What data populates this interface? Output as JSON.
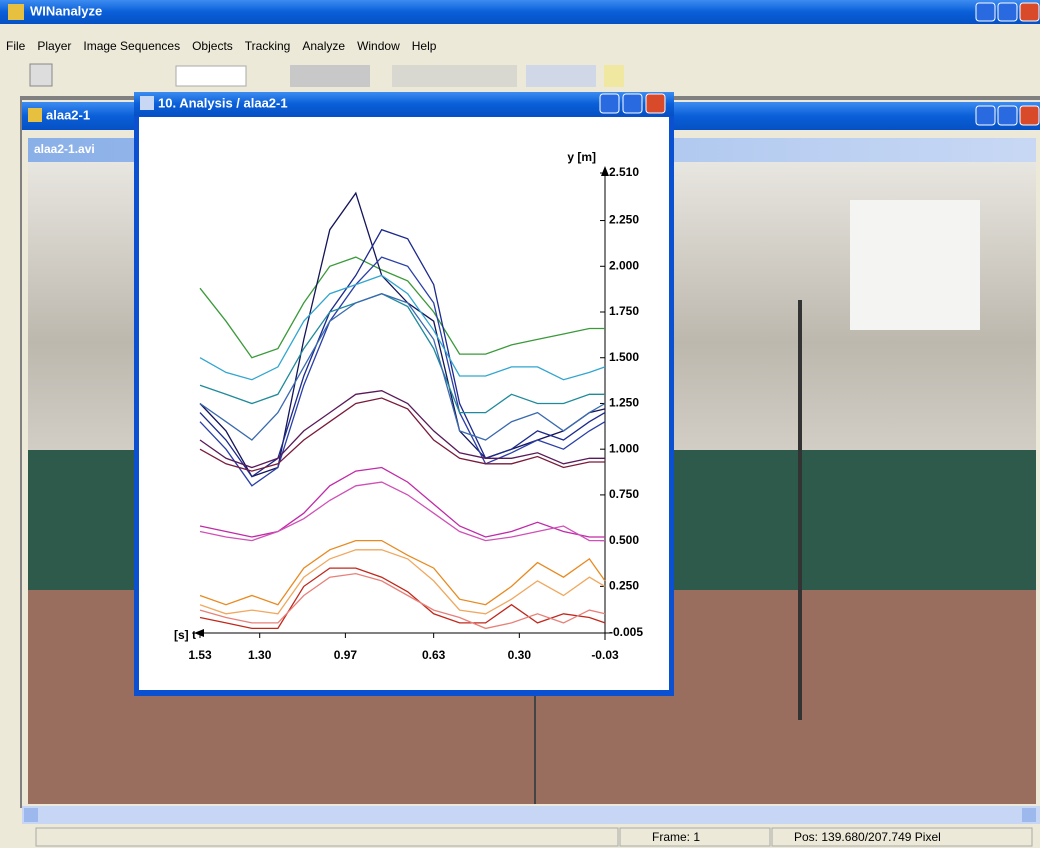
{
  "window": {
    "title": "WINanalyze",
    "menu": [
      "File",
      "Player",
      "Image Sequences",
      "Objects",
      "Tracking",
      "Analyze",
      "Window",
      "Help"
    ]
  },
  "document_window": {
    "title": "alaa2-1",
    "subtitle": "alaa2-1.avi"
  },
  "analysis_window": {
    "title": "10. Analysis / alaa2-1"
  },
  "chart_data": {
    "type": "line",
    "y_label": "y [m]",
    "x_label": "[s] t",
    "x": [
      1.53,
      1.43,
      1.33,
      1.23,
      1.13,
      1.03,
      0.93,
      0.83,
      0.73,
      0.63,
      0.53,
      0.43,
      0.33,
      0.23,
      0.13,
      0.03,
      -0.03
    ],
    "xlim": [
      1.53,
      -0.03
    ],
    "xticks": [
      1.53,
      {
        "value": 1.3,
        "label": "1.30"
      },
      0.97,
      0.63,
      {
        "value": 0.3,
        "label": "0.30"
      },
      -0.03
    ],
    "ylim": [
      -0.005,
      2.51
    ],
    "yticks": [
      {
        "value": 2.51,
        "label": "2.510"
      },
      {
        "value": 2.25,
        "label": "2.250"
      },
      {
        "value": 2,
        "label": "2.000"
      },
      {
        "value": 1.75,
        "label": "1.750"
      },
      {
        "value": 1.5,
        "label": "1.500"
      },
      {
        "value": 1.25,
        "label": "1.250"
      },
      {
        "value": 1,
        "label": "1.000"
      },
      {
        "value": 0.75,
        "label": "0.750"
      },
      {
        "value": 0.5,
        "label": "0.500"
      },
      {
        "value": 0.25,
        "label": "0.250"
      },
      -0.005
    ],
    "series": [
      {
        "color": "#3a9a3a",
        "values": [
          1.88,
          1.7,
          1.5,
          1.55,
          1.8,
          2.0,
          2.05,
          1.98,
          1.92,
          1.75,
          1.52,
          1.52,
          1.57,
          1.6,
          1.63,
          1.66,
          1.66
        ]
      },
      {
        "color": "#14145a",
        "values": [
          1.25,
          1.1,
          0.85,
          0.9,
          1.6,
          2.2,
          2.4,
          1.95,
          1.8,
          1.7,
          1.1,
          0.95,
          1.0,
          1.05,
          1.1,
          1.2,
          1.22
        ]
      },
      {
        "color": "#1c2a8c",
        "values": [
          1.2,
          1.05,
          0.85,
          0.95,
          1.4,
          1.75,
          1.95,
          2.2,
          2.15,
          1.9,
          1.25,
          0.95,
          1.0,
          1.1,
          1.05,
          1.15,
          1.2
        ]
      },
      {
        "color": "#2a3fa8",
        "values": [
          1.15,
          1.0,
          0.8,
          0.9,
          1.35,
          1.7,
          1.9,
          2.05,
          2.0,
          1.8,
          1.2,
          0.92,
          0.98,
          1.05,
          1.0,
          1.1,
          1.15
        ]
      },
      {
        "color": "#30a6d0",
        "values": [
          1.5,
          1.42,
          1.38,
          1.45,
          1.7,
          1.85,
          1.9,
          1.95,
          1.85,
          1.65,
          1.4,
          1.4,
          1.45,
          1.45,
          1.38,
          1.42,
          1.45
        ]
      },
      {
        "color": "#1f8a9a",
        "values": [
          1.35,
          1.3,
          1.25,
          1.3,
          1.55,
          1.75,
          1.8,
          1.85,
          1.78,
          1.55,
          1.2,
          1.2,
          1.3,
          1.25,
          1.25,
          1.3,
          1.3
        ]
      },
      {
        "color": "#3a6ab0",
        "values": [
          1.25,
          1.15,
          1.05,
          1.2,
          1.45,
          1.7,
          1.8,
          1.85,
          1.8,
          1.6,
          1.1,
          1.05,
          1.15,
          1.2,
          1.1,
          1.2,
          1.25
        ]
      },
      {
        "color": "#5a1a5a",
        "values": [
          1.05,
          0.95,
          0.9,
          0.95,
          1.1,
          1.2,
          1.3,
          1.32,
          1.25,
          1.1,
          0.98,
          0.95,
          0.95,
          0.98,
          0.92,
          0.95,
          0.95
        ]
      },
      {
        "color": "#7a1a3a",
        "values": [
          1.0,
          0.92,
          0.88,
          0.92,
          1.05,
          1.15,
          1.25,
          1.28,
          1.22,
          1.05,
          0.95,
          0.92,
          0.92,
          0.96,
          0.9,
          0.93,
          0.93
        ]
      },
      {
        "color": "#c02aa8",
        "values": [
          0.58,
          0.55,
          0.52,
          0.55,
          0.65,
          0.8,
          0.88,
          0.9,
          0.82,
          0.7,
          0.58,
          0.52,
          0.55,
          0.6,
          0.55,
          0.52,
          0.52
        ]
      },
      {
        "color": "#d050b8",
        "values": [
          0.55,
          0.52,
          0.5,
          0.55,
          0.62,
          0.72,
          0.8,
          0.82,
          0.75,
          0.65,
          0.55,
          0.5,
          0.52,
          0.55,
          0.58,
          0.5,
          0.5
        ]
      },
      {
        "color": "#e88a20",
        "values": [
          0.2,
          0.15,
          0.2,
          0.15,
          0.35,
          0.45,
          0.5,
          0.5,
          0.42,
          0.35,
          0.18,
          0.15,
          0.25,
          0.38,
          0.3,
          0.4,
          0.28
        ]
      },
      {
        "color": "#f0a860",
        "values": [
          0.15,
          0.1,
          0.12,
          0.1,
          0.3,
          0.4,
          0.45,
          0.45,
          0.4,
          0.28,
          0.12,
          0.1,
          0.18,
          0.28,
          0.2,
          0.3,
          0.25
        ]
      },
      {
        "color": "#c0281c",
        "values": [
          0.08,
          0.05,
          0.02,
          0.02,
          0.25,
          0.35,
          0.35,
          0.3,
          0.22,
          0.1,
          0.05,
          0.05,
          0.15,
          0.05,
          0.1,
          0.08,
          0.05
        ]
      },
      {
        "color": "#e8807a",
        "values": [
          0.12,
          0.08,
          0.05,
          0.05,
          0.2,
          0.3,
          0.32,
          0.28,
          0.2,
          0.12,
          0.08,
          0.02,
          0.05,
          0.1,
          0.05,
          0.12,
          0.1
        ]
      }
    ]
  },
  "status_bar": {
    "frame": "Frame: 1",
    "position": "Pos: 139.680/207.749 Pixel"
  }
}
